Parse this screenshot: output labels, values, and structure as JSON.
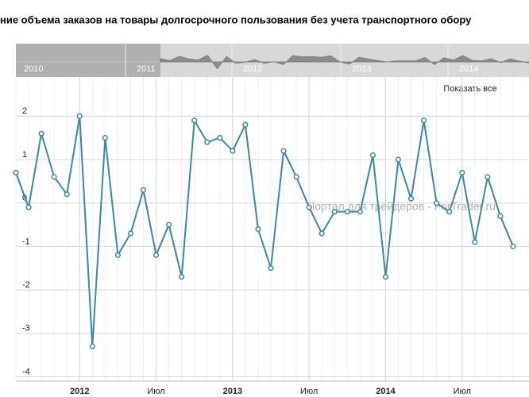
{
  "chart_data": {
    "type": "line",
    "title": "ние объема заказов на товары долгосрочного пользования без учета транспортного обору",
    "watermark": "Портал для трейдеров - ForTrader.ru",
    "button": "Показать все",
    "navigator_labels": [
      "2010",
      "2011",
      "2012",
      "2013",
      "2014"
    ],
    "categories": [
      null,
      null,
      null,
      null,
      null,
      null,
      null,
      null,
      null,
      null,
      null,
      null,
      null,
      null,
      null,
      null,
      null,
      null,
      null,
      null,
      null,
      null,
      null,
      null,
      null,
      null,
      null,
      null,
      null,
      null,
      null,
      null,
      null,
      null,
      null,
      null,
      null,
      null,
      null,
      null
    ],
    "series": [
      {
        "name": null,
        "color": "#3a87a6",
        "values": [
          0.7,
          -0.1,
          1.6,
          0.6,
          0.2,
          2.0,
          -3.3,
          1.5,
          -1.2,
          -0.7,
          0.3,
          -1.2,
          -0.5,
          -1.7,
          1.9,
          1.4,
          1.5,
          1.2,
          1.8,
          -0.6,
          -1.5,
          1.2,
          0.6,
          -0.1,
          -0.7,
          -0.2,
          -0.2,
          -0.2,
          1.1,
          -1.7,
          1.0,
          0.1,
          1.9,
          0.0,
          -0.2,
          0.7,
          -0.9,
          0.6,
          -0.3,
          -1.0
        ]
      }
    ],
    "ylim": [
      -4.1,
      2.9
    ],
    "yticks": [
      -4,
      -3,
      -2,
      -1,
      0,
      1,
      2
    ],
    "xticks": [
      {
        "value": 5,
        "label": "2012"
      },
      {
        "value": 11,
        "label": "Июл"
      },
      {
        "value": 17,
        "label": "2013"
      },
      {
        "value": 23,
        "label": "Июл"
      },
      {
        "value": 29,
        "label": "2014"
      },
      {
        "value": 35,
        "label": "Июл"
      }
    ],
    "grid": true
  }
}
